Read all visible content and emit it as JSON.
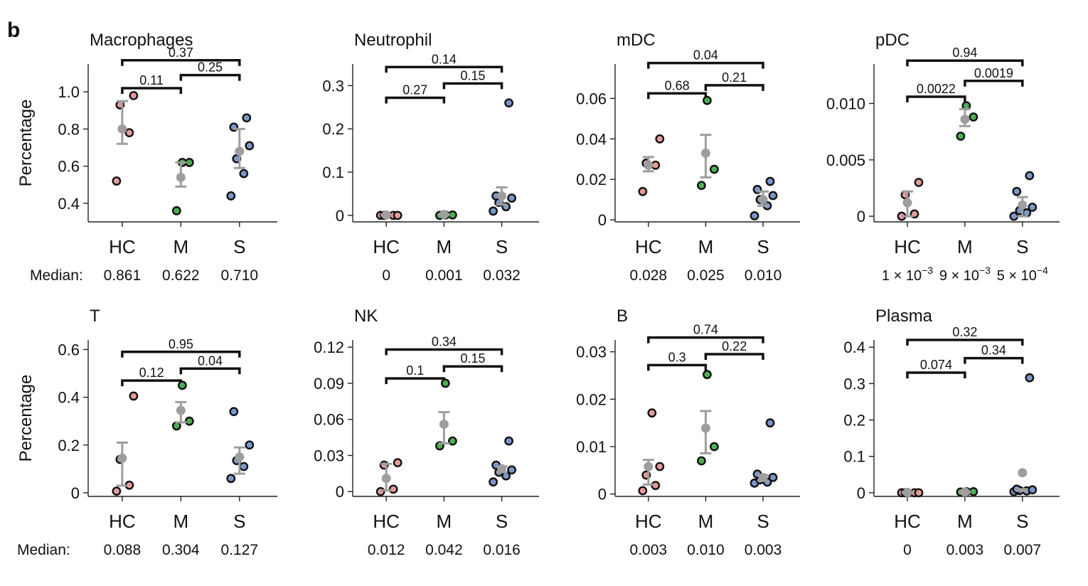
{
  "panel_label": "b",
  "median_label": "Median:",
  "ylabel": "Percentage",
  "colors": {
    "HC": "#e69a98",
    "M": "#4caf50",
    "S": "#7b97c9",
    "mean": "#9e9e9e",
    "outline": "#111111"
  },
  "chart_data": [
    {
      "type": "scatter",
      "title": "Macrophages",
      "categories": [
        "HC",
        "M",
        "S"
      ],
      "ylim": [
        0.3,
        1.15
      ],
      "yticks": [
        0.4,
        0.6,
        0.8,
        1.0
      ],
      "ytick_labels": [
        "0.4",
        "0.6",
        "0.8",
        "1.0"
      ],
      "points": {
        "HC": [
          0.52,
          0.78,
          0.93,
          0.98
        ],
        "M": [
          0.36,
          0.62,
          0.62
        ],
        "S": [
          0.44,
          0.56,
          0.64,
          0.71,
          0.81,
          0.86
        ]
      },
      "mean": [
        0.8,
        0.54,
        0.68
      ],
      "err_low": [
        0.72,
        0.49,
        0.59
      ],
      "err_high": [
        0.95,
        0.62,
        0.8
      ],
      "pvalues": [
        {
          "pair": [
            "HC",
            "M"
          ],
          "label": "0.11",
          "y": 1.02
        },
        {
          "pair": [
            "M",
            "S"
          ],
          "label": "0.25",
          "y": 1.09
        },
        {
          "pair": [
            "HC",
            "S"
          ],
          "label": "0.37",
          "y": 1.17
        }
      ],
      "medians": [
        "0.861",
        "0.622",
        "0.710"
      ]
    },
    {
      "type": "scatter",
      "title": "Neutrophil",
      "categories": [
        "HC",
        "M",
        "S"
      ],
      "ylim": [
        -0.015,
        0.35
      ],
      "yticks": [
        0,
        0.1,
        0.2,
        0.3
      ],
      "ytick_labels": [
        "0",
        "0.1",
        "0.2",
        "0.3"
      ],
      "points": {
        "HC": [
          0,
          0,
          0,
          0
        ],
        "M": [
          0,
          0.001,
          0.001
        ],
        "S": [
          0.01,
          0.02,
          0.03,
          0.04,
          0.045,
          0.26
        ]
      },
      "mean": [
        0.001,
        0.002,
        0.045
      ],
      "err_low": [
        0,
        0,
        0.025
      ],
      "err_high": [
        0.002,
        0.003,
        0.065
      ],
      "pvalues": [
        {
          "pair": [
            "HC",
            "M"
          ],
          "label": "0.27",
          "y": 0.272
        },
        {
          "pair": [
            "M",
            "S"
          ],
          "label": "0.15",
          "y": 0.305
        },
        {
          "pair": [
            "HC",
            "S"
          ],
          "label": "0.14",
          "y": 0.343
        }
      ],
      "medians": [
        "0",
        "0.001",
        "0.032"
      ]
    },
    {
      "type": "scatter",
      "title": "mDC",
      "categories": [
        "HC",
        "M",
        "S"
      ],
      "ylim": [
        -0.001,
        0.077
      ],
      "yticks": [
        0,
        0.02,
        0.04,
        0.06
      ],
      "ytick_labels": [
        "0",
        "0.02",
        "0.04",
        "0.06"
      ],
      "points": {
        "HC": [
          0.014,
          0.027,
          0.028,
          0.04
        ],
        "M": [
          0.017,
          0.025,
          0.059
        ],
        "S": [
          0.002,
          0.007,
          0.01,
          0.012,
          0.015,
          0.019
        ]
      },
      "mean": [
        0.027,
        0.033,
        0.01
      ],
      "err_low": [
        0.024,
        0.021,
        0.007
      ],
      "err_high": [
        0.031,
        0.042,
        0.014
      ],
      "pvalues": [
        {
          "pair": [
            "HC",
            "M"
          ],
          "label": "0.68",
          "y": 0.0625
        },
        {
          "pair": [
            "M",
            "S"
          ],
          "label": "0.21",
          "y": 0.0665
        },
        {
          "pair": [
            "HC",
            "S"
          ],
          "label": "0.04",
          "y": 0.0775
        }
      ],
      "medians": [
        "0.028",
        "0.025",
        "0.010"
      ]
    },
    {
      "type": "scatter",
      "title": "pDC",
      "categories": [
        "HC",
        "M",
        "S"
      ],
      "ylim": [
        -0.0005,
        0.0135
      ],
      "yticks": [
        0,
        0.005,
        0.01
      ],
      "ytick_labels": [
        "0",
        "0.005",
        "0.010"
      ],
      "points": {
        "HC": [
          0,
          0.0002,
          0.0019,
          0.003
        ],
        "M": [
          0.0071,
          0.0088,
          0.0098
        ],
        "S": [
          0,
          0.0003,
          0.0005,
          0.0008,
          0.0022,
          0.0036
        ]
      },
      "mean": [
        0.0012,
        0.0086,
        0.001
      ],
      "err_low": [
        0,
        0.008,
        0
      ],
      "err_high": [
        0.0022,
        0.0095,
        0.0017
      ],
      "pvalues": [
        {
          "pair": [
            "HC",
            "M"
          ],
          "label": "0.0022",
          "y": 0.0106
        },
        {
          "pair": [
            "M",
            "S"
          ],
          "label": "0.0019",
          "y": 0.012
        },
        {
          "pair": [
            "HC",
            "S"
          ],
          "label": "0.94",
          "y": 0.0138
        }
      ],
      "medians_sci": [
        {
          "mant": "1",
          "exp": "−3"
        },
        {
          "mant": "9",
          "exp": "−3"
        },
        {
          "mant": "5",
          "exp": "−4"
        }
      ]
    },
    {
      "type": "scatter",
      "title": "T",
      "categories": [
        "HC",
        "M",
        "S"
      ],
      "ylim": [
        -0.015,
        0.64
      ],
      "yticks": [
        0,
        0.2,
        0.4,
        0.6
      ],
      "ytick_labels": [
        "0",
        "0.2",
        "0.4",
        "0.6"
      ],
      "points": {
        "HC": [
          0.007,
          0.032,
          0.14,
          0.405
        ],
        "M": [
          0.28,
          0.3,
          0.45
        ],
        "S": [
          0.06,
          0.11,
          0.135,
          0.2,
          0.34
        ]
      },
      "mean": [
        0.145,
        0.345,
        0.15
      ],
      "err_low": [
        0.03,
        0.295,
        0.08
      ],
      "err_high": [
        0.21,
        0.38,
        0.19
      ],
      "pvalues": [
        {
          "pair": [
            "HC",
            "M"
          ],
          "label": "0.12",
          "y": 0.47
        },
        {
          "pair": [
            "M",
            "S"
          ],
          "label": "0.04",
          "y": 0.52
        },
        {
          "pair": [
            "HC",
            "S"
          ],
          "label": "0.95",
          "y": 0.59
        }
      ],
      "medians": [
        "0.088",
        "0.304",
        "0.127"
      ]
    },
    {
      "type": "scatter",
      "title": "NK",
      "categories": [
        "HC",
        "M",
        "S"
      ],
      "ylim": [
        -0.004,
        0.126
      ],
      "yticks": [
        0,
        0.03,
        0.06,
        0.09,
        0.12
      ],
      "ytick_labels": [
        "0",
        "0.03",
        "0.06",
        "0.09",
        "0.12"
      ],
      "points": {
        "HC": [
          0,
          0.002,
          0.022,
          0.024
        ],
        "M": [
          0.038,
          0.042,
          0.09
        ],
        "S": [
          0.008,
          0.013,
          0.016,
          0.018,
          0.022,
          0.042
        ]
      },
      "mean": [
        0.011,
        0.056,
        0.019
      ],
      "err_low": [
        0.001,
        0.04,
        0.016
      ],
      "err_high": [
        0.023,
        0.066,
        0.021
      ],
      "pvalues": [
        {
          "pair": [
            "HC",
            "M"
          ],
          "label": "0.1",
          "y": 0.094
        },
        {
          "pair": [
            "M",
            "S"
          ],
          "label": "0.15",
          "y": 0.104
        },
        {
          "pair": [
            "HC",
            "S"
          ],
          "label": "0.34",
          "y": 0.118
        }
      ],
      "medians": [
        "0.012",
        "0.042",
        "0.016"
      ]
    },
    {
      "type": "scatter",
      "title": "B",
      "categories": [
        "HC",
        "M",
        "S"
      ],
      "ylim": [
        -0.0005,
        0.0325
      ],
      "yticks": [
        0,
        0.01,
        0.02,
        0.03
      ],
      "ytick_labels": [
        "0",
        "0.01",
        "0.02",
        "0.03"
      ],
      "points": {
        "HC": [
          0.0007,
          0.0018,
          0.004,
          0.0058,
          0.0171
        ],
        "M": [
          0.007,
          0.01,
          0.0252
        ],
        "S": [
          0.0023,
          0.0025,
          0.003,
          0.0035,
          0.0042,
          0.015
        ]
      },
      "mean": [
        0.0058,
        0.0139,
        0.0035
      ],
      "err_low": [
        0.002,
        0.0086,
        0.0028
      ],
      "err_high": [
        0.0072,
        0.0175,
        0.004
      ],
      "pvalues": [
        {
          "pair": [
            "HC",
            "M"
          ],
          "label": "0.3",
          "y": 0.0272
        },
        {
          "pair": [
            "M",
            "S"
          ],
          "label": "0.22",
          "y": 0.0295
        },
        {
          "pair": [
            "HC",
            "S"
          ],
          "label": "0.74",
          "y": 0.033
        }
      ],
      "medians": [
        "0.003",
        "0.010",
        "0.003"
      ]
    },
    {
      "type": "scatter",
      "title": "Plasma",
      "categories": [
        "HC",
        "M",
        "S"
      ],
      "ylim": [
        -0.01,
        0.42
      ],
      "yticks": [
        0,
        0.1,
        0.2,
        0.3,
        0.4
      ],
      "ytick_labels": [
        "0",
        "0.1",
        "0.2",
        "0.3",
        "0.4"
      ],
      "points": {
        "HC": [
          0,
          0,
          0,
          0
        ],
        "M": [
          0.002,
          0.003,
          0.003
        ],
        "S": [
          0.003,
          0.005,
          0.006,
          0.008,
          0.01,
          0.316
        ]
      },
      "mean": [
        0.001,
        0.002,
        0.055
      ],
      "err_low": [
        0,
        0,
        0.005
      ],
      "err_high": [
        0.002,
        0.004,
        0.01
      ],
      "pvalues": [
        {
          "pair": [
            "HC",
            "M"
          ],
          "label": "0.074",
          "y": 0.33
        },
        {
          "pair": [
            "M",
            "S"
          ],
          "label": "0.34",
          "y": 0.37
        },
        {
          "pair": [
            "HC",
            "S"
          ],
          "label": "0.32",
          "y": 0.42
        }
      ],
      "medians": [
        "0",
        "0.003",
        "0.007"
      ]
    }
  ]
}
